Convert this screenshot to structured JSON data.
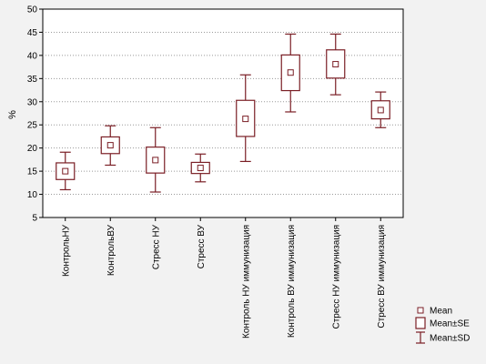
{
  "chart_data": {
    "type": "boxplot",
    "ylabel": "%",
    "ylim": [
      5,
      50
    ],
    "yticks": [
      5,
      10,
      15,
      20,
      25,
      30,
      35,
      40,
      45,
      50
    ],
    "grid": true,
    "legend_position": "bottom-right",
    "color": "#7a1e25",
    "categories": [
      "КонтрольНУ",
      "КонтрольВУ",
      "Стресс НУ",
      "Стресс ВУ",
      "Контроль НУ иммунизация",
      "Контроль ВУ иммунизация",
      "Стресс НУ иммунизация",
      "Стресс ВУ иммунизация"
    ],
    "series": [
      {
        "category": "КонтрольНУ",
        "mean": 15.0,
        "se_low": 13.2,
        "se_high": 16.8,
        "sd_low": 11.0,
        "sd_high": 19.1
      },
      {
        "category": "КонтрольВУ",
        "mean": 20.6,
        "se_low": 18.8,
        "se_high": 22.4,
        "sd_low": 16.3,
        "sd_high": 24.8
      },
      {
        "category": "Стресс НУ",
        "mean": 17.4,
        "se_low": 14.6,
        "se_high": 20.2,
        "sd_low": 10.5,
        "sd_high": 24.4
      },
      {
        "category": "Стресс ВУ",
        "mean": 15.7,
        "se_low": 14.5,
        "se_high": 16.9,
        "sd_low": 12.7,
        "sd_high": 18.7
      },
      {
        "category": "Контроль НУ иммунизация",
        "mean": 26.3,
        "se_low": 22.5,
        "se_high": 30.3,
        "sd_low": 17.1,
        "sd_high": 35.8
      },
      {
        "category": "Контроль ВУ иммунизация",
        "mean": 36.3,
        "se_low": 32.4,
        "se_high": 40.1,
        "sd_low": 27.8,
        "sd_high": 44.6
      },
      {
        "category": "Стресс НУ иммунизация",
        "mean": 38.1,
        "se_low": 35.1,
        "se_high": 41.2,
        "sd_low": 31.5,
        "sd_high": 44.6
      },
      {
        "category": "Стресс ВУ иммунизация",
        "mean": 28.2,
        "se_low": 26.3,
        "se_high": 30.2,
        "sd_low": 24.4,
        "sd_high": 32.1
      }
    ],
    "legend": [
      {
        "symbol": "mean",
        "label": "Mean"
      },
      {
        "symbol": "se",
        "label": "Mean±SE"
      },
      {
        "symbol": "sd",
        "label": "Mean±SD"
      }
    ]
  }
}
